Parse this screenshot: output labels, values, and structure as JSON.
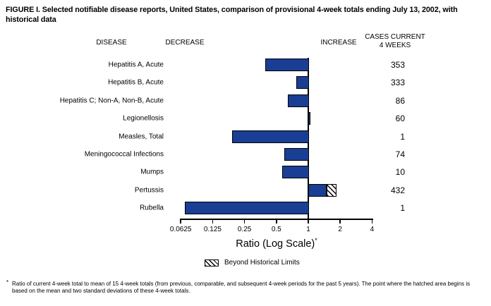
{
  "title": "FIGURE I. Selected notifiable disease reports, United States, comparison of provisional 4-week totals ending July 13, 2002, with historical data",
  "headers": {
    "disease": "DISEASE",
    "decrease": "DECREASE",
    "increase": "INCREASE",
    "cases": "CASES CURRENT\n4 WEEKS"
  },
  "chart_data": {
    "type": "bar",
    "orientation": "horizontal",
    "scale": "log2",
    "baseline": 1,
    "xlim": [
      0.0625,
      4
    ],
    "ticks": [
      0.0625,
      0.125,
      0.25,
      0.5,
      1,
      2,
      4
    ],
    "tick_labels": [
      "0.0625",
      "0.125",
      "0.25",
      "0.5",
      "1",
      "2",
      "4"
    ],
    "axis_title": "Ratio (Log Scale)",
    "axis_title_superscript": "*",
    "bar_color": "#1a3e94",
    "rows": [
      {
        "disease": "Hepatitis A, Acute",
        "ratio": 0.39,
        "cases": "353"
      },
      {
        "disease": "Hepatitis B, Acute",
        "ratio": 0.77,
        "cases": "333"
      },
      {
        "disease": "Hepatitis C; Non-A, Non-B, Acute",
        "ratio": 0.64,
        "cases": "86"
      },
      {
        "disease": "Legionellosis",
        "ratio": 1.05,
        "cases": "60"
      },
      {
        "disease": "Measles, Total",
        "ratio": 0.19,
        "cases": "1"
      },
      {
        "disease": "Meningococcal Infections",
        "ratio": 0.59,
        "cases": "74"
      },
      {
        "disease": "Mumps",
        "ratio": 0.57,
        "cases": "10"
      },
      {
        "disease": "Pertussis",
        "ratio": 1.85,
        "cases": "432",
        "beyond_historical_limits": true,
        "hatch_start": 1.5
      },
      {
        "disease": "Rubella",
        "ratio": 0.068,
        "cases": "1"
      }
    ],
    "legend": {
      "label": "Beyond Historical Limits",
      "swatch": "diagonal-hatch"
    }
  },
  "footnote": {
    "marker": "*",
    "text": "Ratio of current 4-week total to mean of 15 4-week totals (from previous, comparable, and subsequent 4-week periods for the past 5 years). The point where the hatched area begins is based on the mean and two standard deviations of these 4-week totals."
  }
}
